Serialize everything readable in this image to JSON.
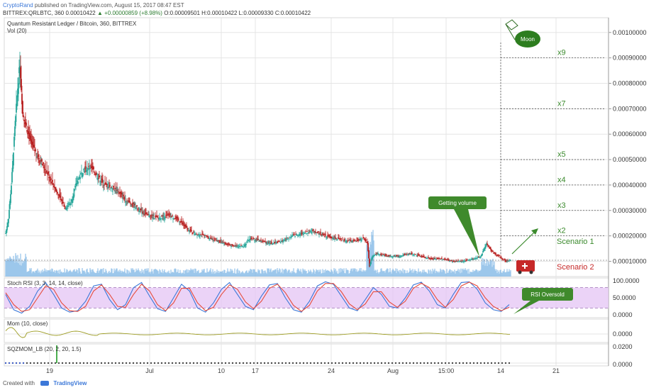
{
  "header": {
    "author": "CryptoRand",
    "published_text": "published on TradingView.com, August 15, 2017 08:47 EST",
    "ticker_line_prefix": "BITTREX:QRLBTC, 360",
    "price": "0.00010422",
    "change": "▲ +0.00000859 (+8.98%)",
    "ohlc": {
      "O": "O:0.00009501",
      "H": "H:0.00010422",
      "L": "L:0.00009330",
      "C": "C:0.00010422"
    }
  },
  "footer": {
    "created_with": "Created with",
    "brand": "TradingView"
  },
  "colors": {
    "up": "#26a69a",
    "down": "#b71c1c",
    "volume": "#7cb5e4",
    "annotation": "#3b8a2d",
    "stoch_k": "#3c78d8",
    "stoch_d": "#e64c3c",
    "rsi_band": "#e6c8f5",
    "mom": "#9e9d24",
    "ambulance": "#c62828",
    "scenario2": "#c62828",
    "grid": "#e5e5e5",
    "price_line": "#888888"
  },
  "chart_data": [
    {
      "type": "candlestick",
      "title": "Quantum Resistant Ledger / Bitcoin, 360, BITTREX",
      "subtitle": "Vol (20)",
      "x_ticks": [
        "19",
        "Jul",
        "10",
        "17",
        "24",
        "Aug",
        "15:00",
        "14",
        "21"
      ],
      "y_ticks": [
        "0.00100000",
        "0.00090000",
        "0.00080000",
        "0.00070000",
        "0.00060000",
        "0.00050000",
        "0.00040000",
        "0.00030000",
        "0.00020000",
        "0.00010000"
      ],
      "ylim": [
        4e-05,
        0.00103
      ],
      "close_path": [
        [
          0,
          0.00021
        ],
        [
          4,
          0.00027
        ],
        [
          8,
          0.0004
        ],
        [
          12,
          0.00058
        ],
        [
          16,
          0.00075
        ],
        [
          20,
          0.00088
        ],
        [
          24,
          0.00068
        ],
        [
          30,
          0.00062
        ],
        [
          36,
          0.00056
        ],
        [
          44,
          0.00052
        ],
        [
          54,
          0.00047
        ],
        [
          64,
          0.00042
        ],
        [
          74,
          0.00036
        ],
        [
          84,
          0.00031
        ],
        [
          92,
          0.00033
        ],
        [
          100,
          0.00041
        ],
        [
          110,
          0.00046
        ],
        [
          120,
          0.00047
        ],
        [
          130,
          0.00043
        ],
        [
          140,
          0.0004
        ],
        [
          150,
          0.00039
        ],
        [
          160,
          0.00037
        ],
        [
          170,
          0.00034
        ],
        [
          180,
          0.00032
        ],
        [
          190,
          0.0003
        ],
        [
          200,
          0.00028
        ],
        [
          215,
          0.00027
        ],
        [
          230,
          0.00028
        ],
        [
          245,
          0.00026
        ],
        [
          255,
          0.00023
        ],
        [
          265,
          0.00021
        ],
        [
          280,
          0.0002
        ],
        [
          300,
          0.00018
        ],
        [
          320,
          0.00016
        ],
        [
          335,
          0.00016
        ],
        [
          345,
          0.00019
        ],
        [
          360,
          0.00018
        ],
        [
          375,
          0.00017
        ],
        [
          390,
          0.00018
        ],
        [
          405,
          0.0002
        ],
        [
          420,
          0.00021
        ],
        [
          435,
          0.00022
        ],
        [
          450,
          0.0002
        ],
        [
          465,
          0.00019
        ],
        [
          480,
          0.00018
        ],
        [
          495,
          0.00018
        ],
        [
          505,
          0.00019
        ],
        [
          510,
          0.00017
        ],
        [
          513,
          8e-05
        ],
        [
          517,
          0.00012
        ],
        [
          525,
          0.00013
        ],
        [
          540,
          0.00012
        ],
        [
          555,
          0.00012
        ],
        [
          570,
          0.00013
        ],
        [
          585,
          0.00012
        ],
        [
          600,
          0.00011
        ],
        [
          615,
          0.00011
        ],
        [
          630,
          0.0001
        ],
        [
          645,
          0.0001
        ],
        [
          660,
          0.00011
        ],
        [
          670,
          0.00012
        ],
        [
          678,
          0.00017
        ],
        [
          685,
          0.00014
        ],
        [
          695,
          0.00012
        ],
        [
          705,
          0.0001
        ],
        [
          712,
          0.000104
        ]
      ],
      "target_levels": [
        {
          "label": "x9",
          "value": 0.0009
        },
        {
          "label": "x7",
          "value": 0.0007
        },
        {
          "label": "x5",
          "value": 0.0005
        },
        {
          "label": "x4",
          "value": 0.0004
        },
        {
          "label": "x3",
          "value": 0.0003
        },
        {
          "label": "x2",
          "value": 0.0002
        }
      ],
      "current_price": 0.00010422,
      "annotations": {
        "moon": "Moon",
        "getting_volume": "Getting volume",
        "scenario1": "Scenario 1",
        "scenario2": "Scenario 2"
      }
    },
    {
      "type": "line",
      "title": "Stoch RSI (3, 3, 14, 14, close)",
      "y_ticks": [
        "100.0000",
        "50.0000",
        "0.0000"
      ],
      "ylim": [
        0,
        100
      ],
      "band": [
        20,
        80
      ],
      "annotation": "RSI Oversold",
      "series": [
        {
          "key": "k",
          "values": [
            60,
            15,
            5,
            25,
            70,
            95,
            60,
            20,
            8,
            12,
            40,
            85,
            90,
            45,
            15,
            30,
            80,
            95,
            55,
            18,
            10,
            50,
            90,
            70,
            20,
            8,
            35,
            75,
            95,
            60,
            25,
            15,
            55,
            88,
            92,
            50,
            15,
            8,
            40,
            85,
            97,
            90,
            55,
            20,
            12,
            45,
            80,
            60,
            25,
            20,
            50,
            88,
            96,
            70,
            30,
            20,
            60,
            95,
            97,
            75,
            35,
            15,
            10,
            30
          ]
        },
        {
          "key": "d",
          "values": [
            65,
            30,
            10,
            15,
            50,
            85,
            75,
            35,
            12,
            10,
            25,
            70,
            88,
            60,
            25,
            22,
            60,
            90,
            70,
            30,
            12,
            35,
            78,
            78,
            35,
            12,
            22,
            60,
            88,
            75,
            38,
            18,
            40,
            78,
            90,
            65,
            28,
            10,
            28,
            70,
            92,
            92,
            68,
            32,
            15,
            32,
            68,
            68,
            38,
            22,
            40,
            78,
            93,
            80,
            45,
            22,
            45,
            85,
            96,
            85,
            50,
            25,
            12,
            22
          ]
        }
      ]
    },
    {
      "type": "line",
      "title": "Mom (10, close)",
      "y_ticks": [
        "0.0000"
      ],
      "ylim": [
        -0.0001,
        0.0001
      ]
    },
    {
      "type": "bar",
      "title": "SQZMOM_LB (20, 2, 20, 1.5)",
      "y_ticks": [
        "0.0200",
        "0.0000"
      ],
      "ylim": [
        0,
        0.02
      ]
    }
  ]
}
